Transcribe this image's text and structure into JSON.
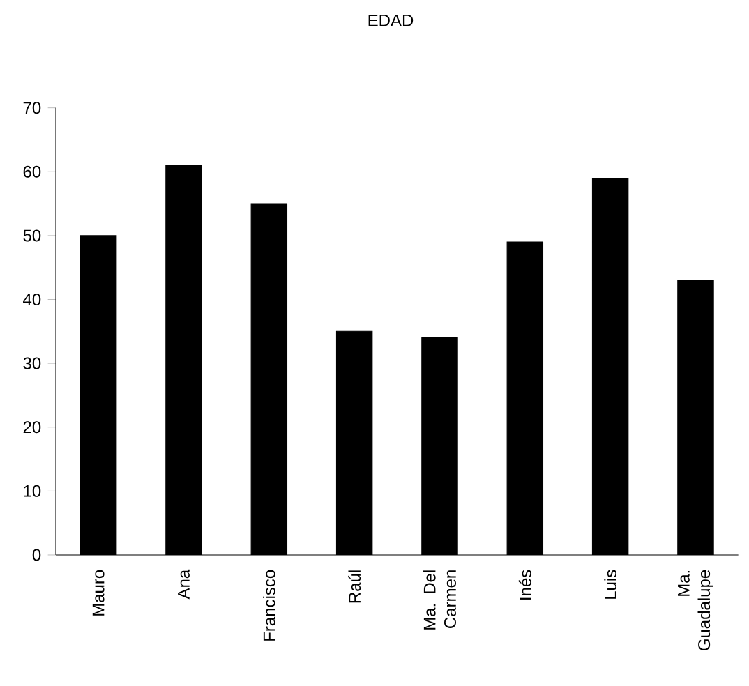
{
  "chart_data": {
    "type": "bar",
    "title": "EDAD",
    "categories": [
      "Mauro",
      "Ana",
      "Francisco",
      "Raúl",
      "Ma. Del Carmen",
      "Inés",
      "Luis",
      "Ma. Guadalupe"
    ],
    "values": [
      50,
      61,
      55,
      35,
      34,
      49,
      59,
      43
    ],
    "color": "#000000",
    "ylim": [
      0,
      70
    ],
    "yticks": [
      0,
      10,
      20,
      30,
      40,
      50,
      60,
      70
    ]
  }
}
